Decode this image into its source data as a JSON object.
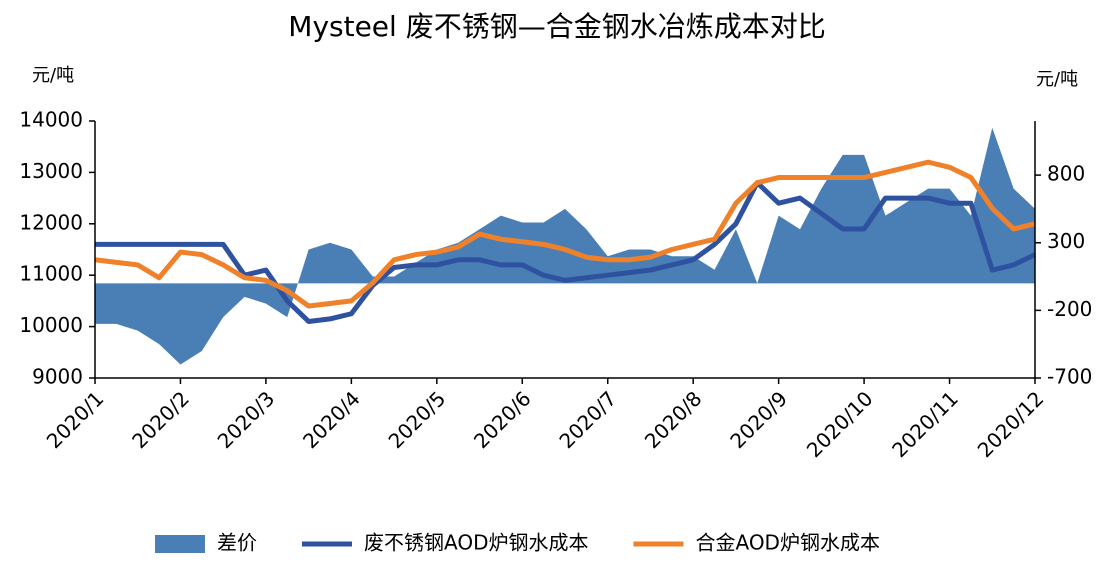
{
  "chart_data": {
    "type": "line",
    "title": "Mysteel 废不锈钢—合金钢水冶炼成本对比",
    "y_label": "元/吨",
    "y2_label": "元/吨",
    "xlim": [
      1,
      12
    ],
    "xticks": [
      {
        "value": 1,
        "label": "2020/1"
      },
      {
        "value": 2,
        "label": "2020/2"
      },
      {
        "value": 3,
        "label": "2020/3"
      },
      {
        "value": 4,
        "label": "2020/4"
      },
      {
        "value": 5,
        "label": "2020/5"
      },
      {
        "value": 6,
        "label": "2020/6"
      },
      {
        "value": 7,
        "label": "2020/7"
      },
      {
        "value": 8,
        "label": "2020/8"
      },
      {
        "value": 9,
        "label": "2020/9"
      },
      {
        "value": 10,
        "label": "2020/10"
      },
      {
        "value": 11,
        "label": "2020/11"
      },
      {
        "value": 12,
        "label": "2020/12"
      }
    ],
    "ylim": [
      9000,
      14000
    ],
    "yticks": [
      9000,
      10000,
      11000,
      12000,
      13000,
      14000
    ],
    "y2lim": [
      -700,
      1200
    ],
    "y2ticks": [
      -700,
      -200,
      300,
      800
    ],
    "x": [
      1,
      1.25,
      1.5,
      1.75,
      2,
      2.25,
      2.5,
      2.75,
      3,
      3.25,
      3.5,
      3.75,
      4,
      4.25,
      4.5,
      4.75,
      5,
      5.25,
      5.5,
      5.75,
      6,
      6.25,
      6.5,
      6.75,
      7,
      7.25,
      7.5,
      7.75,
      8,
      8.25,
      8.5,
      8.75,
      9,
      9.25,
      9.5,
      9.75,
      10,
      10.25,
      10.5,
      10.75,
      11,
      11.25,
      11.5,
      11.75,
      12
    ],
    "series": [
      {
        "name": "差价",
        "kind": "area",
        "axis": "y2",
        "color": "#4a7fb5",
        "values": [
          -300,
          -300,
          -350,
          -450,
          -600,
          -500,
          -250,
          -100,
          -150,
          -250,
          250,
          300,
          250,
          50,
          50,
          150,
          250,
          300,
          400,
          500,
          450,
          450,
          550,
          400,
          200,
          250,
          250,
          200,
          200,
          100,
          400,
          0,
          500,
          400,
          700,
          950,
          950,
          500,
          600,
          700,
          700,
          500,
          1150,
          700,
          550
        ]
      },
      {
        "name": "废不锈钢AOD炉钢水成本",
        "kind": "line",
        "color": "#2f52a0",
        "values": [
          11600,
          11600,
          11600,
          11600,
          11600,
          11600,
          11600,
          11000,
          11100,
          10500,
          10100,
          10150,
          10250,
          10800,
          11150,
          11200,
          11200,
          11300,
          11300,
          11200,
          11200,
          11000,
          10900,
          10950,
          11000,
          11050,
          11100,
          11200,
          11300,
          11600,
          12000,
          12800,
          12400,
          12500,
          12200,
          11900,
          11900,
          12500,
          12500,
          12500,
          12400,
          12400,
          11100,
          11200,
          11400
        ]
      },
      {
        "name": "合金AOD炉钢水成本",
        "kind": "line",
        "color": "#f0812b",
        "values": [
          11300,
          11250,
          11200,
          10950,
          11450,
          11400,
          11200,
          10950,
          10900,
          10700,
          10400,
          10450,
          10500,
          10850,
          11300,
          11400,
          11450,
          11550,
          11800,
          11700,
          11650,
          11600,
          11500,
          11350,
          11300,
          11300,
          11350,
          11500,
          11600,
          11700,
          12400,
          12800,
          12900,
          12900,
          12900,
          12900,
          12900,
          13000,
          13100,
          13200,
          13100,
          12900,
          12300,
          11900,
          12000
        ]
      }
    ]
  }
}
